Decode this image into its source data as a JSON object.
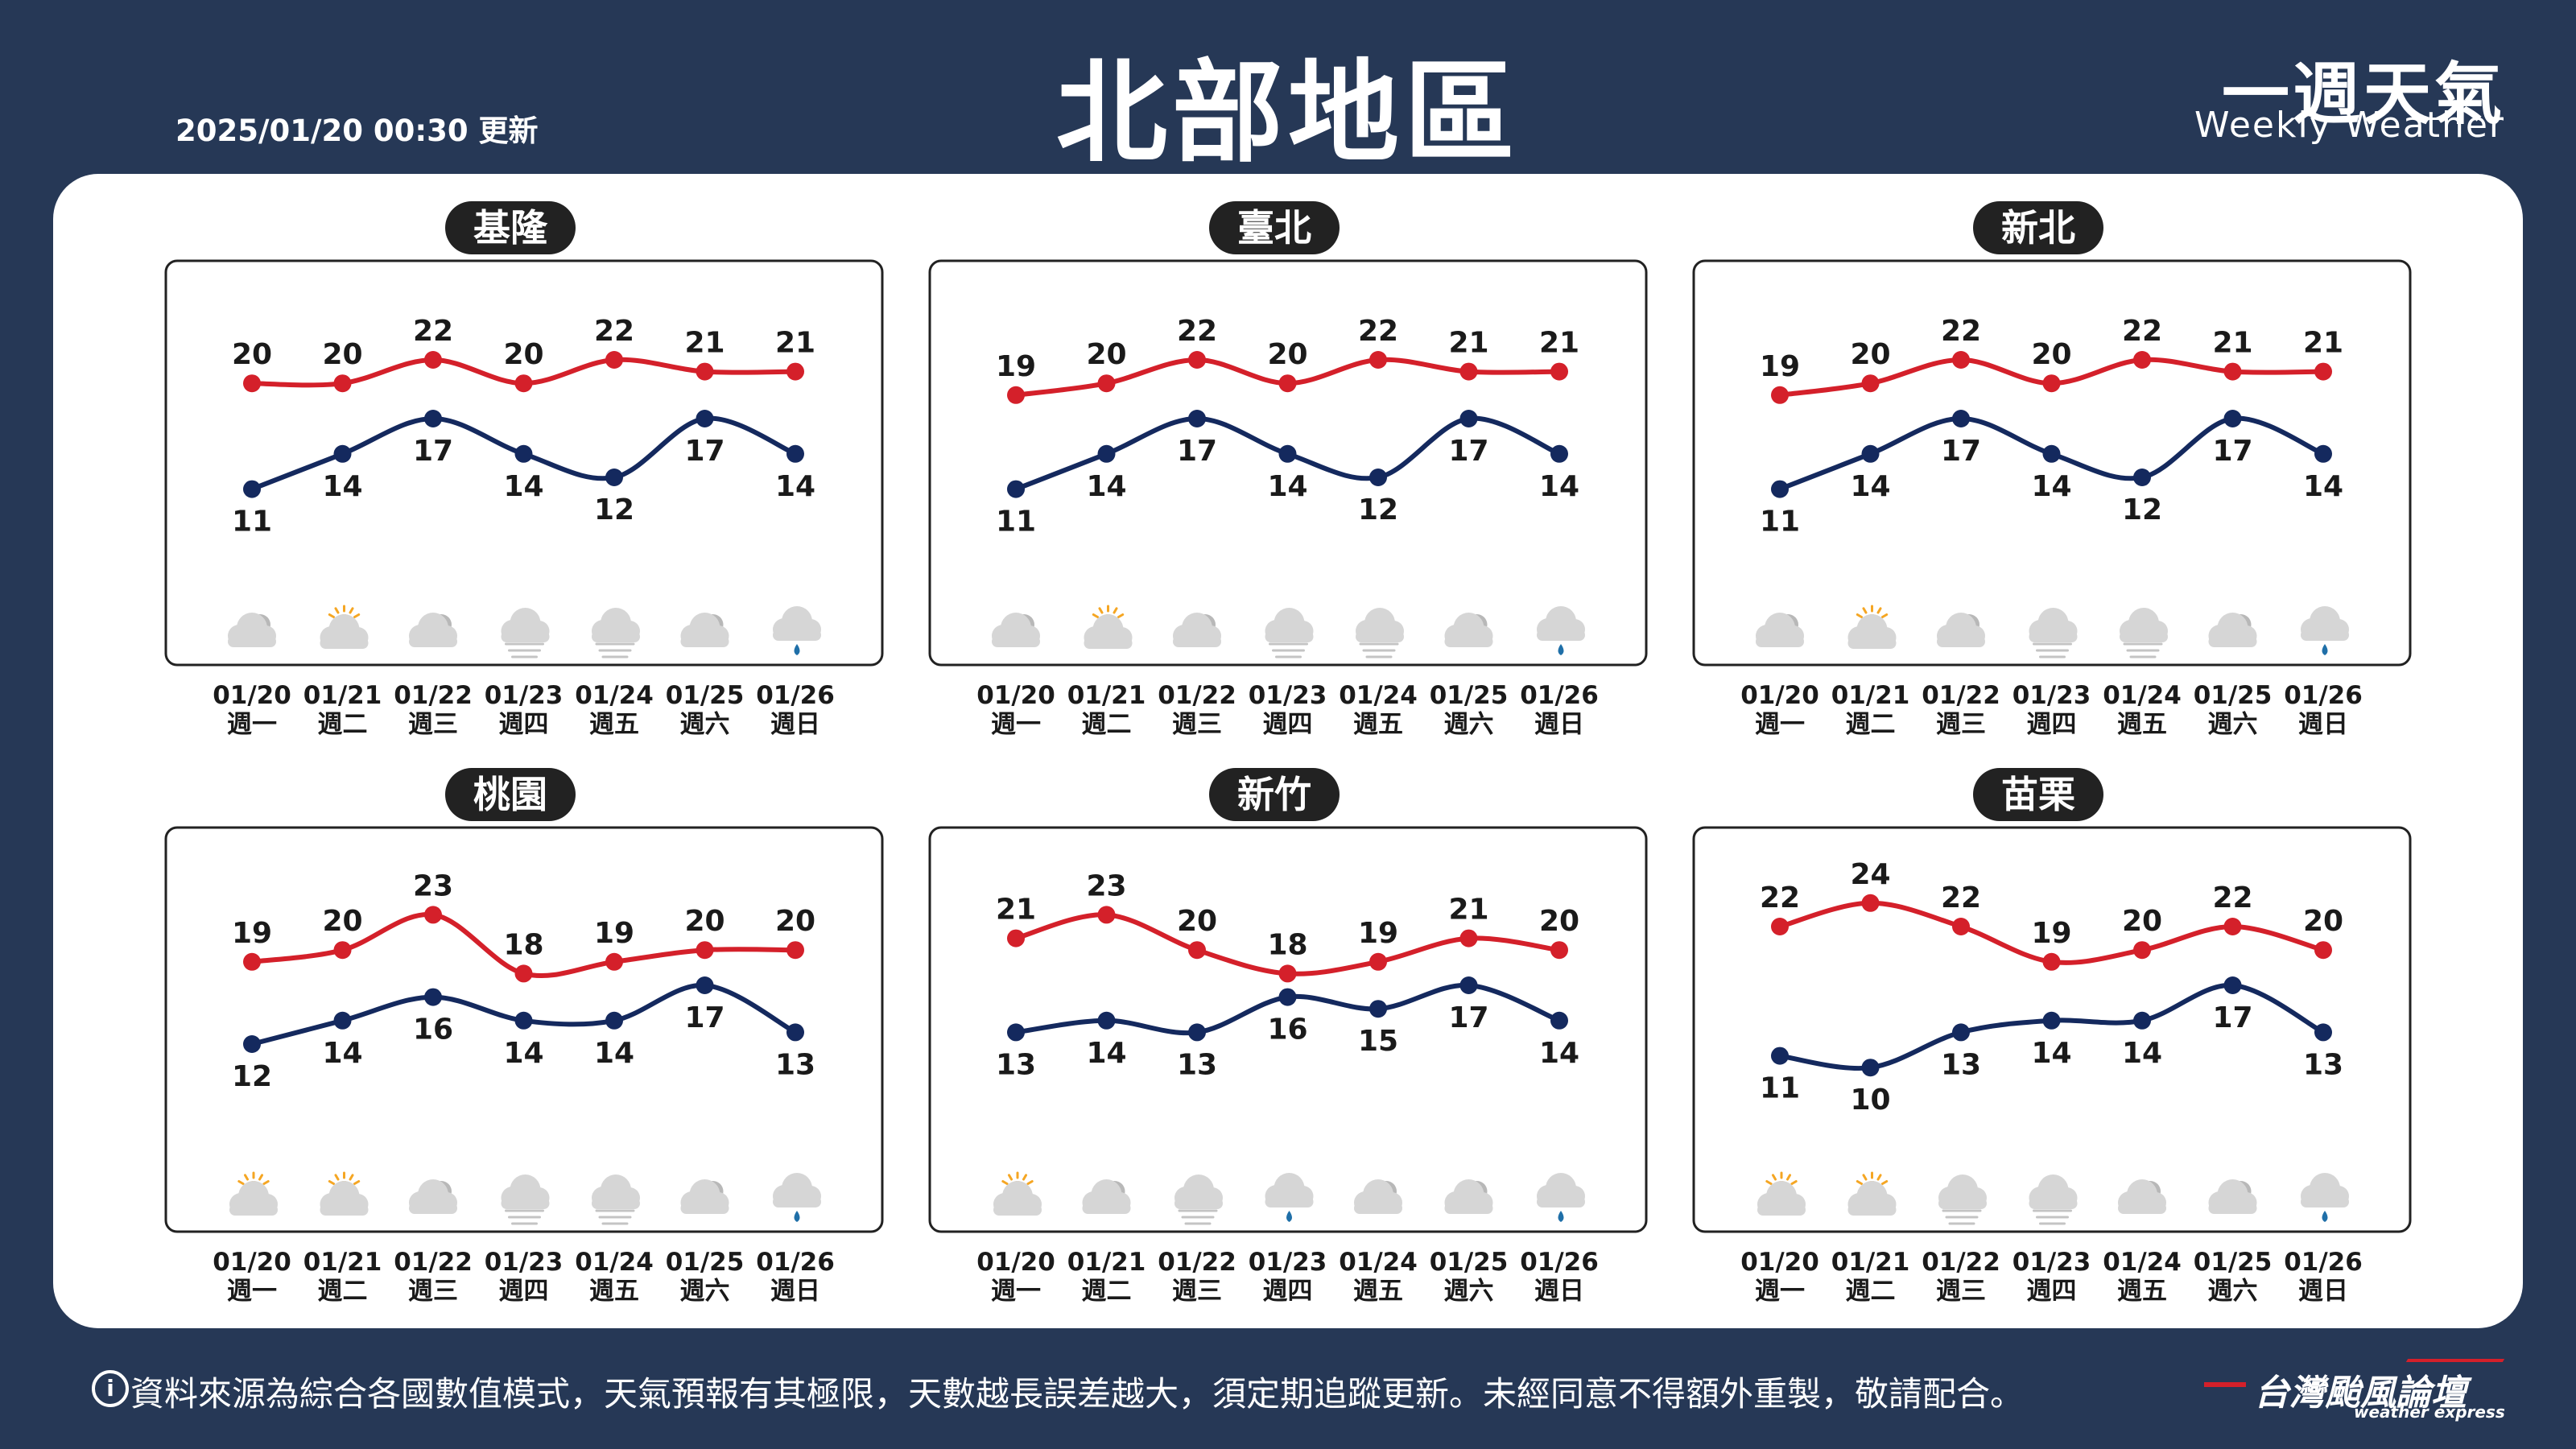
{
  "header": {
    "updated": "2025/01/20 00:30 更新",
    "title": "北部地區",
    "brand_cn": "一週天氣",
    "brand_en": "Weekly Weather"
  },
  "footer": {
    "note": "資料來源為綜合各國數值模式，天氣預報有其極限，天數越長誤差越大，須定期追蹤更新。未經同意不得額外重製，敬請配合。",
    "logo_cn": "台灣颱風論壇",
    "logo_en": "weather express"
  },
  "colors": {
    "background": "#263856",
    "high": "#d4202a",
    "low": "#14295e",
    "sun": "#f5a623",
    "cloud": "#cfcfcf",
    "rain": "#1f6fa8"
  },
  "chart_data": [
    {
      "type": "line",
      "title": "基隆",
      "categories": [
        "01/20",
        "01/21",
        "01/22",
        "01/23",
        "01/24",
        "01/25",
        "01/26"
      ],
      "weekdays": [
        "週一",
        "週二",
        "週三",
        "週四",
        "週五",
        "週六",
        "週日"
      ],
      "series": [
        {
          "key": "high",
          "values": [
            20,
            20,
            22,
            20,
            22,
            21,
            21
          ]
        },
        {
          "key": "low",
          "values": [
            11,
            14,
            17,
            14,
            12,
            17,
            14
          ]
        }
      ],
      "icons": [
        "cloudy-icon",
        "partly-sunny-icon",
        "cloudy-icon",
        "haze-icon",
        "haze-icon",
        "cloudy-icon",
        "rain-icon"
      ],
      "ylim": [
        7,
        27
      ]
    },
    {
      "type": "line",
      "title": "臺北",
      "categories": [
        "01/20",
        "01/21",
        "01/22",
        "01/23",
        "01/24",
        "01/25",
        "01/26"
      ],
      "weekdays": [
        "週一",
        "週二",
        "週三",
        "週四",
        "週五",
        "週六",
        "週日"
      ],
      "series": [
        {
          "key": "high",
          "values": [
            19,
            20,
            22,
            20,
            22,
            21,
            21
          ]
        },
        {
          "key": "low",
          "values": [
            11,
            14,
            17,
            14,
            12,
            17,
            14
          ]
        }
      ],
      "icons": [
        "cloudy-icon",
        "partly-sunny-icon",
        "cloudy-icon",
        "haze-icon",
        "haze-icon",
        "cloudy-icon",
        "rain-icon"
      ],
      "ylim": [
        7,
        27
      ]
    },
    {
      "type": "line",
      "title": "新北",
      "categories": [
        "01/20",
        "01/21",
        "01/22",
        "01/23",
        "01/24",
        "01/25",
        "01/26"
      ],
      "weekdays": [
        "週一",
        "週二",
        "週三",
        "週四",
        "週五",
        "週六",
        "週日"
      ],
      "series": [
        {
          "key": "high",
          "values": [
            19,
            20,
            22,
            20,
            22,
            21,
            21
          ]
        },
        {
          "key": "low",
          "values": [
            11,
            14,
            17,
            14,
            12,
            17,
            14
          ]
        }
      ],
      "icons": [
        "cloudy-icon",
        "partly-sunny-icon",
        "cloudy-icon",
        "haze-icon",
        "haze-icon",
        "cloudy-icon",
        "rain-icon"
      ],
      "ylim": [
        7,
        27
      ]
    },
    {
      "type": "line",
      "title": "桃園",
      "categories": [
        "01/20",
        "01/21",
        "01/22",
        "01/23",
        "01/24",
        "01/25",
        "01/26"
      ],
      "weekdays": [
        "週一",
        "週二",
        "週三",
        "週四",
        "週五",
        "週六",
        "週日"
      ],
      "series": [
        {
          "key": "high",
          "values": [
            19,
            20,
            23,
            18,
            19,
            20,
            20
          ]
        },
        {
          "key": "low",
          "values": [
            12,
            14,
            16,
            14,
            14,
            17,
            13
          ]
        }
      ],
      "icons": [
        "partly-sunny-icon",
        "partly-sunny-icon",
        "cloudy-icon",
        "haze-icon",
        "haze-icon",
        "cloudy-icon",
        "rain-icon"
      ],
      "ylim": [
        7,
        27
      ]
    },
    {
      "type": "line",
      "title": "新竹",
      "categories": [
        "01/20",
        "01/21",
        "01/22",
        "01/23",
        "01/24",
        "01/25",
        "01/26"
      ],
      "weekdays": [
        "週一",
        "週二",
        "週三",
        "週四",
        "週五",
        "週六",
        "週日"
      ],
      "series": [
        {
          "key": "high",
          "values": [
            21,
            23,
            20,
            18,
            19,
            21,
            20
          ]
        },
        {
          "key": "low",
          "values": [
            13,
            14,
            13,
            16,
            15,
            17,
            14
          ]
        }
      ],
      "icons": [
        "partly-sunny-icon",
        "cloudy-icon",
        "haze-icon",
        "rain-icon",
        "cloudy-icon",
        "cloudy-icon",
        "rain-icon"
      ],
      "ylim": [
        7,
        27
      ]
    },
    {
      "type": "line",
      "title": "苗栗",
      "categories": [
        "01/20",
        "01/21",
        "01/22",
        "01/23",
        "01/24",
        "01/25",
        "01/26"
      ],
      "weekdays": [
        "週一",
        "週二",
        "週三",
        "週四",
        "週五",
        "週六",
        "週日"
      ],
      "series": [
        {
          "key": "high",
          "values": [
            22,
            24,
            22,
            19,
            20,
            22,
            20
          ]
        },
        {
          "key": "low",
          "values": [
            11,
            10,
            13,
            14,
            14,
            17,
            13
          ]
        }
      ],
      "icons": [
        "partly-sunny-icon",
        "partly-sunny-icon",
        "haze-icon",
        "haze-icon",
        "cloudy-icon",
        "cloudy-icon",
        "rain-icon"
      ],
      "ylim": [
        7,
        27
      ]
    }
  ]
}
